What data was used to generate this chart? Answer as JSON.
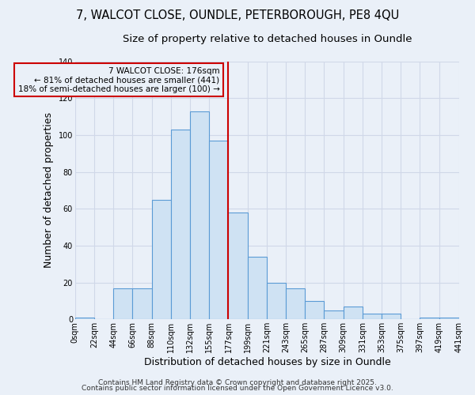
{
  "title1": "7, WALCOT CLOSE, OUNDLE, PETERBOROUGH, PE8 4QU",
  "title2": "Size of property relative to detached houses in Oundle",
  "xlabel": "Distribution of detached houses by size in Oundle",
  "ylabel": "Number of detached properties",
  "bin_edges": [
    0,
    22,
    44,
    66,
    88,
    110,
    132,
    154,
    176,
    198,
    220,
    242,
    264,
    286,
    308,
    330,
    352,
    374,
    396,
    418,
    441
  ],
  "bar_heights": [
    1,
    0,
    17,
    17,
    65,
    103,
    113,
    97,
    58,
    34,
    20,
    17,
    10,
    5,
    7,
    3,
    3,
    0,
    1,
    1
  ],
  "bar_facecolor": "#cfe2f3",
  "bar_edgecolor": "#5b9bd5",
  "grid_color": "#d0d8e8",
  "background_color": "#eaf0f8",
  "vline_x": 176,
  "vline_color": "#cc0000",
  "annotation_text": "7 WALCOT CLOSE: 176sqm\n← 81% of detached houses are smaller (441)\n18% of semi-detached houses are larger (100) →",
  "annotation_box_color": "#cc0000",
  "ylim": [
    0,
    140
  ],
  "tick_labels": [
    "0sqm",
    "22sqm",
    "44sqm",
    "66sqm",
    "88sqm",
    "110sqm",
    "132sqm",
    "155sqm",
    "177sqm",
    "199sqm",
    "221sqm",
    "243sqm",
    "265sqm",
    "287sqm",
    "309sqm",
    "331sqm",
    "353sqm",
    "375sqm",
    "397sqm",
    "419sqm",
    "441sqm"
  ],
  "footer1": "Contains HM Land Registry data © Crown copyright and database right 2025.",
  "footer2": "Contains public sector information licensed under the Open Government Licence v3.0.",
  "title_fontsize": 10.5,
  "subtitle_fontsize": 9.5,
  "axis_label_fontsize": 9,
  "tick_fontsize": 7,
  "footer_fontsize": 6.5
}
